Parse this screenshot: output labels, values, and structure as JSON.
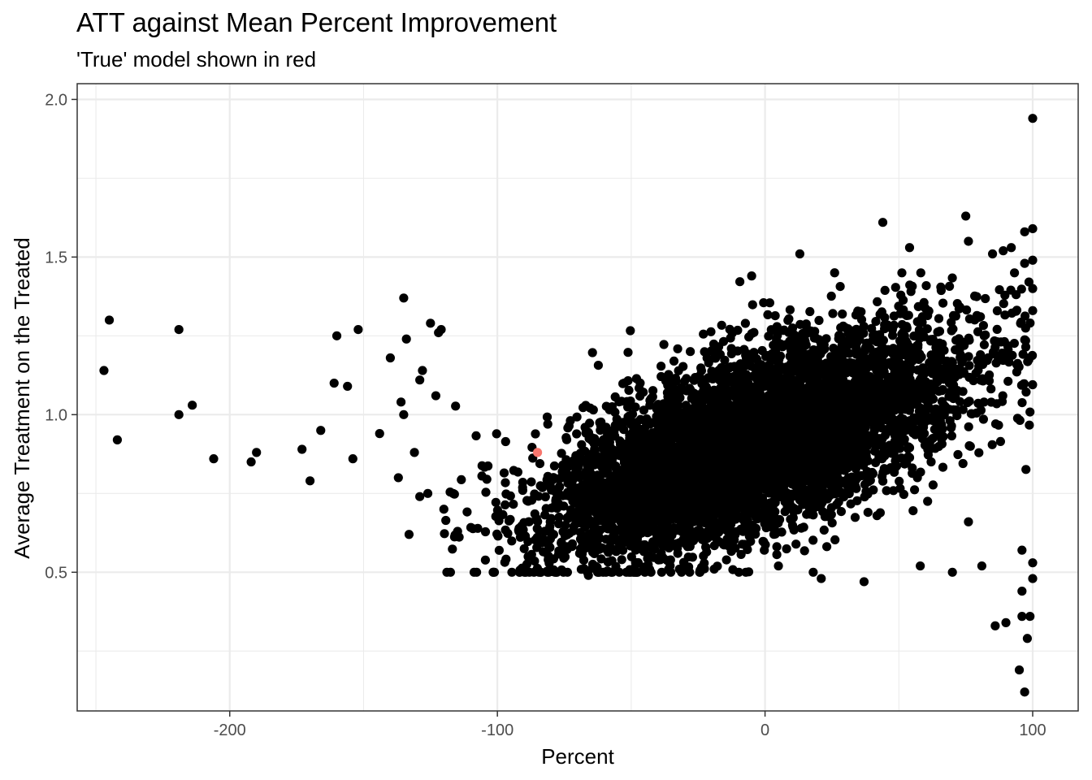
{
  "chart_data": {
    "type": "scatter",
    "title": "ATT against Mean Percent Improvement",
    "subtitle": "'True' model shown in red",
    "xlabel": "Percent",
    "ylabel": "Average Treatment on the Treated",
    "xlim": [
      -257,
      117
    ],
    "ylim": [
      0.06,
      2.05
    ],
    "x_ticks": [
      -200,
      -100,
      0,
      100
    ],
    "x_tick_labels": [
      "-200",
      "-100",
      "0",
      "100"
    ],
    "y_ticks": [
      0.5,
      1.0,
      1.5,
      2.0
    ],
    "y_tick_labels": [
      "0.5",
      "1.0",
      "1.5",
      "2.0"
    ],
    "grid": true,
    "theme": "bw",
    "point_color": "#000000",
    "highlight_color": "#F8766D",
    "highlight_point": {
      "x": -85,
      "y": 0.88
    },
    "outlier_points": [
      {
        "x": -245,
        "y": 1.3
      },
      {
        "x": -247,
        "y": 1.14
      },
      {
        "x": -242,
        "y": 0.92
      },
      {
        "x": -219,
        "y": 1.27
      },
      {
        "x": -219,
        "y": 1.0
      },
      {
        "x": -214,
        "y": 1.03
      },
      {
        "x": -206,
        "y": 0.86
      },
      {
        "x": -192,
        "y": 0.85
      },
      {
        "x": -190,
        "y": 0.88
      },
      {
        "x": -173,
        "y": 0.89
      },
      {
        "x": -170,
        "y": 0.79
      },
      {
        "x": -166,
        "y": 0.95
      },
      {
        "x": -161,
        "y": 1.1
      },
      {
        "x": -160,
        "y": 1.25
      },
      {
        "x": -156,
        "y": 1.09
      },
      {
        "x": -154,
        "y": 0.86
      },
      {
        "x": -152,
        "y": 1.27
      },
      {
        "x": -144,
        "y": 0.94
      },
      {
        "x": -140,
        "y": 1.18
      },
      {
        "x": -137,
        "y": 0.8
      },
      {
        "x": -136,
        "y": 1.04
      },
      {
        "x": -135,
        "y": 1.37
      },
      {
        "x": -135,
        "y": 1.0
      },
      {
        "x": -134,
        "y": 1.24
      },
      {
        "x": -133,
        "y": 0.62
      },
      {
        "x": -131,
        "y": 0.88
      },
      {
        "x": -129,
        "y": 1.11
      },
      {
        "x": -128,
        "y": 1.14
      },
      {
        "x": -129,
        "y": 0.74
      },
      {
        "x": -126,
        "y": 0.75
      },
      {
        "x": -125,
        "y": 1.29
      },
      {
        "x": -123,
        "y": 1.06
      },
      {
        "x": -122,
        "y": 1.26
      },
      {
        "x": -121,
        "y": 1.27
      },
      {
        "x": -120,
        "y": 0.7
      },
      {
        "x": -66,
        "y": 0.49
      },
      {
        "x": -32,
        "y": 0.51
      },
      {
        "x": -19,
        "y": 0.51
      },
      {
        "x": 5,
        "y": 0.52
      },
      {
        "x": 18,
        "y": 0.5
      },
      {
        "x": 21,
        "y": 0.48
      },
      {
        "x": 37,
        "y": 0.47
      },
      {
        "x": 13,
        "y": 1.51
      },
      {
        "x": -5,
        "y": 1.44
      },
      {
        "x": 26,
        "y": 1.45
      },
      {
        "x": 44,
        "y": 1.61
      },
      {
        "x": 54,
        "y": 1.53
      },
      {
        "x": 75,
        "y": 1.63
      },
      {
        "x": 76,
        "y": 1.55
      },
      {
        "x": 58,
        "y": 0.52
      },
      {
        "x": 70,
        "y": 0.5
      },
      {
        "x": 76,
        "y": 0.66
      },
      {
        "x": 81,
        "y": 0.52
      },
      {
        "x": 86,
        "y": 0.33
      },
      {
        "x": 90,
        "y": 0.34
      },
      {
        "x": 95,
        "y": 0.19
      },
      {
        "x": 97,
        "y": 0.12
      },
      {
        "x": 98,
        "y": 0.29
      },
      {
        "x": 96,
        "y": 0.36
      },
      {
        "x": 99,
        "y": 0.36
      },
      {
        "x": 96,
        "y": 0.44
      },
      {
        "x": 100,
        "y": 0.48
      },
      {
        "x": 96,
        "y": 0.57
      },
      {
        "x": 100,
        "y": 0.53
      },
      {
        "x": 100,
        "y": 1.94
      },
      {
        "x": 97,
        "y": 1.58
      },
      {
        "x": 100,
        "y": 1.59
      },
      {
        "x": 100,
        "y": 1.49
      },
      {
        "x": 97,
        "y": 1.48
      },
      {
        "x": 92,
        "y": 1.53
      },
      {
        "x": 85,
        "y": 1.51
      },
      {
        "x": 89,
        "y": 1.52
      },
      {
        "x": 100,
        "y": 1.4
      },
      {
        "x": 100,
        "y": 1.33
      },
      {
        "x": -72,
        "y": 0.59
      },
      {
        "x": -56,
        "y": 0.57
      },
      {
        "x": -43,
        "y": 0.58
      },
      {
        "x": -30,
        "y": 0.6
      }
    ],
    "cluster": {
      "n_points": 6000,
      "x_range": [
        -120,
        100
      ],
      "x_center": -5,
      "x_sd": 38,
      "y_at_x0": 0.92,
      "y_slope_per_unit_x": 0.0028,
      "y_sd": 0.14
    }
  }
}
